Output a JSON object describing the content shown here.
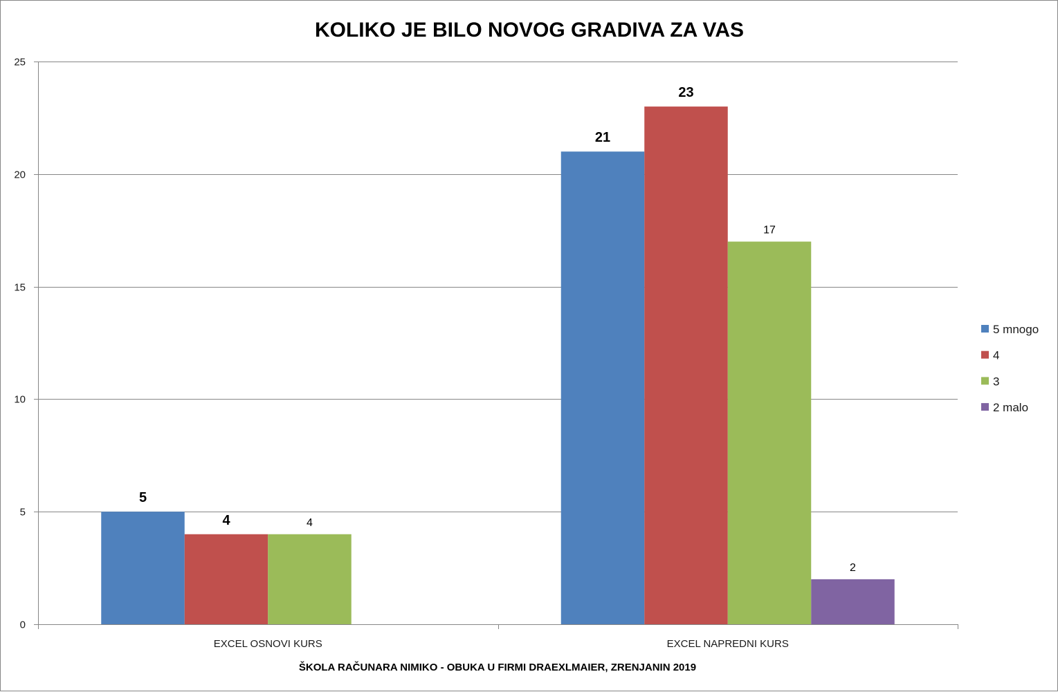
{
  "chart_data": {
    "type": "bar",
    "title": "KOLIKO JE BILO NOVOG GRADIVA ZA VAS",
    "xlabel": "ŠKOLA RAČUNARA NIMIKO - OBUKA U FIRMI DRAEXLMAIER, ZRENJANIN 2019",
    "ylabel": "",
    "ylim": [
      0,
      25
    ],
    "yticks": [
      "0",
      "5",
      "10",
      "15",
      "20",
      "25"
    ],
    "categories": [
      "EXCEL OSNOVI KURS",
      "EXCEL NAPREDNI KURS"
    ],
    "series": [
      {
        "name": "5 mnogo",
        "color": "#4F81BD",
        "values": [
          5,
          21
        ],
        "labels": [
          "5",
          "21"
        ],
        "label_style": "bold"
      },
      {
        "name": "4",
        "color": "#C0504D",
        "values": [
          4,
          23
        ],
        "labels": [
          "4",
          "23"
        ],
        "label_style": "bold"
      },
      {
        "name": "3",
        "color": "#9BBB59",
        "values": [
          4,
          17
        ],
        "labels": [
          "4",
          "17"
        ],
        "label_style": "normal"
      },
      {
        "name": "2 malo",
        "color": "#8064A2",
        "values": [
          null,
          2
        ],
        "labels": [
          "",
          "2"
        ],
        "label_style": "normal"
      }
    ],
    "grid": true,
    "legend_position": "right"
  }
}
